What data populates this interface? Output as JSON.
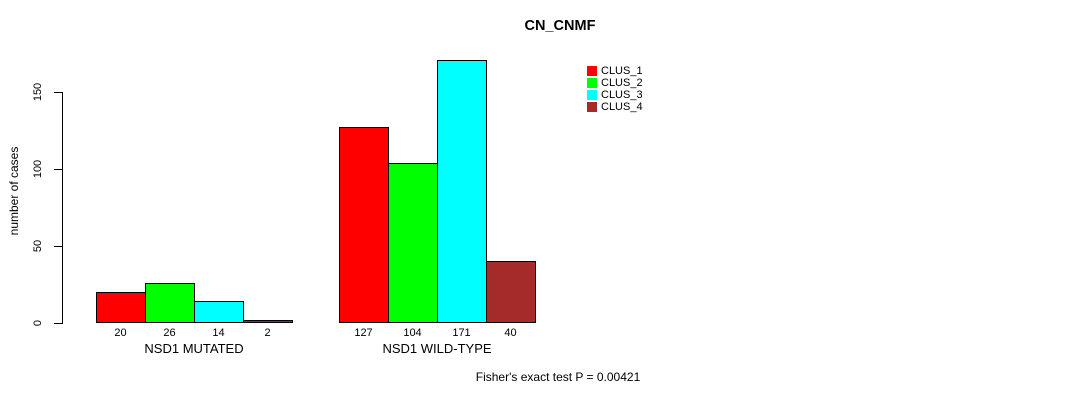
{
  "title": "CN_CNMF",
  "y_axis_label": "number of cases",
  "footer": "Fisher's exact test P = 0.00421",
  "legend": {
    "items": [
      {
        "label": "CLUS_1",
        "color": "#ff0000"
      },
      {
        "label": "CLUS_2",
        "color": "#00ff00"
      },
      {
        "label": "CLUS_3",
        "color": "#00ffff"
      },
      {
        "label": "CLUS_4",
        "color": "#a52a2a"
      }
    ]
  },
  "chart_data": {
    "type": "bar",
    "title": "CN_CNMF",
    "xlabel": "",
    "ylabel": "number of cases",
    "categories": [
      "NSD1 MUTATED",
      "NSD1 WILD-TYPE"
    ],
    "series": [
      {
        "name": "CLUS_1",
        "color": "#ff0000",
        "values": [
          20,
          127
        ]
      },
      {
        "name": "CLUS_2",
        "color": "#00ff00",
        "values": [
          26,
          104
        ]
      },
      {
        "name": "CLUS_3",
        "color": "#00ffff",
        "values": [
          14,
          171
        ]
      },
      {
        "name": "CLUS_4",
        "color": "#a52a2a",
        "values": [
          2,
          40
        ]
      }
    ],
    "y_ticks": [
      0,
      50,
      100,
      150
    ],
    "ylim": [
      0,
      175
    ],
    "grid": false,
    "bar_value_labels": true,
    "legend_position": "top-right",
    "annotation": "Fisher's exact test P = 0.00421"
  }
}
